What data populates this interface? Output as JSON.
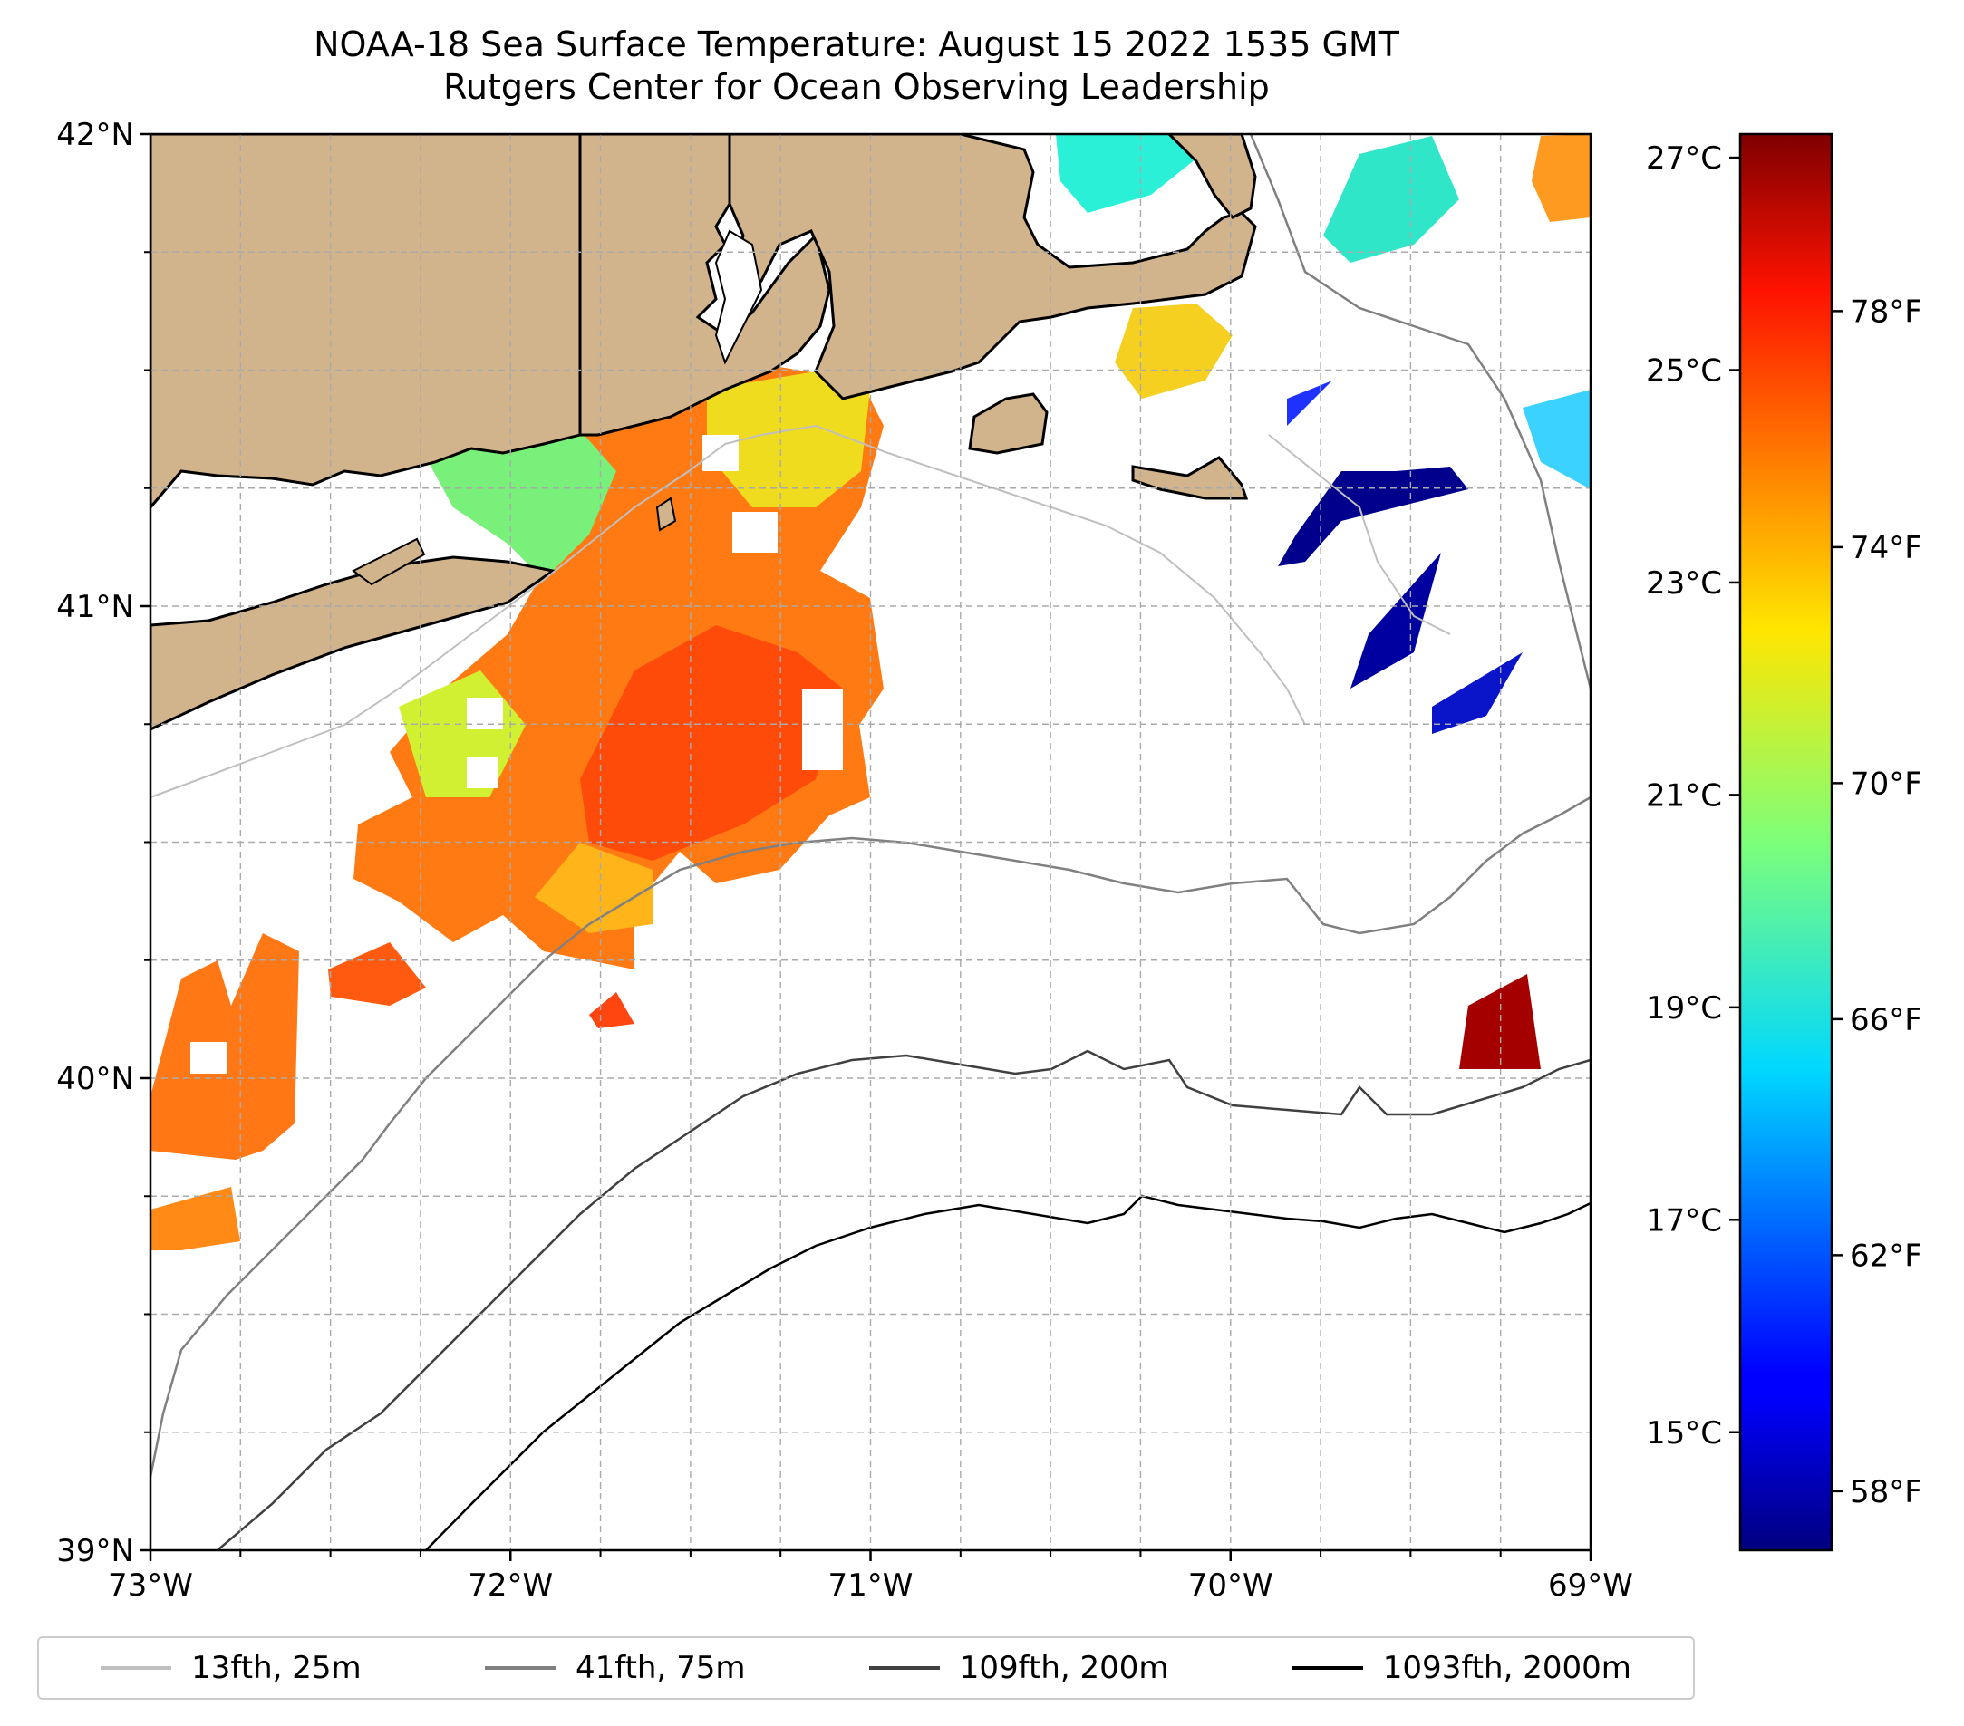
{
  "title": {
    "line1": "NOAA-18 Sea Surface Temperature: August 15 2022 1535 GMT",
    "line2": "Rutgers Center for Ocean Observing Leadership"
  },
  "map": {
    "lon_range": [
      -73,
      -69
    ],
    "lat_range": [
      39,
      42
    ],
    "lat_ticks": [
      {
        "value": 42,
        "label": "42°N"
      },
      {
        "value": 41,
        "label": "41°N"
      },
      {
        "value": 40,
        "label": "40°N"
      },
      {
        "value": 39,
        "label": "39°N"
      }
    ],
    "lon_ticks": [
      {
        "value": -73,
        "label": "73°W"
      },
      {
        "value": -72,
        "label": "72°W"
      },
      {
        "value": -71,
        "label": "71°W"
      },
      {
        "value": -70,
        "label": "70°W"
      },
      {
        "value": -69,
        "label": "69°W"
      }
    ],
    "grid": "dashed",
    "land_color": "#d2b48c",
    "colormap": "jet"
  },
  "colorbar": {
    "celsius_ticks": [
      {
        "value": 27,
        "label": "27°C"
      },
      {
        "value": 25,
        "label": "25°C"
      },
      {
        "value": 23,
        "label": "23°C"
      },
      {
        "value": 21,
        "label": "21°C"
      },
      {
        "value": 19,
        "label": "19°C"
      },
      {
        "value": 17,
        "label": "17°C"
      },
      {
        "value": 15,
        "label": "15°C"
      }
    ],
    "fahrenheit_ticks": [
      {
        "value": 78,
        "label": "78°F"
      },
      {
        "value": 74,
        "label": "74°F"
      },
      {
        "value": 70,
        "label": "70°F"
      },
      {
        "value": 66,
        "label": "66°F"
      },
      {
        "value": 62,
        "label": "62°F"
      },
      {
        "value": 58,
        "label": "58°F"
      }
    ],
    "range_f": [
      57,
      81
    ]
  },
  "legend": [
    {
      "label": "13fth, 25m",
      "color": "#bfbfbf"
    },
    {
      "label": "41fth, 75m",
      "color": "#808080"
    },
    {
      "label": "109fth, 200m",
      "color": "#404040"
    },
    {
      "label": "1093fth, 2000m",
      "color": "#000000"
    }
  ]
}
